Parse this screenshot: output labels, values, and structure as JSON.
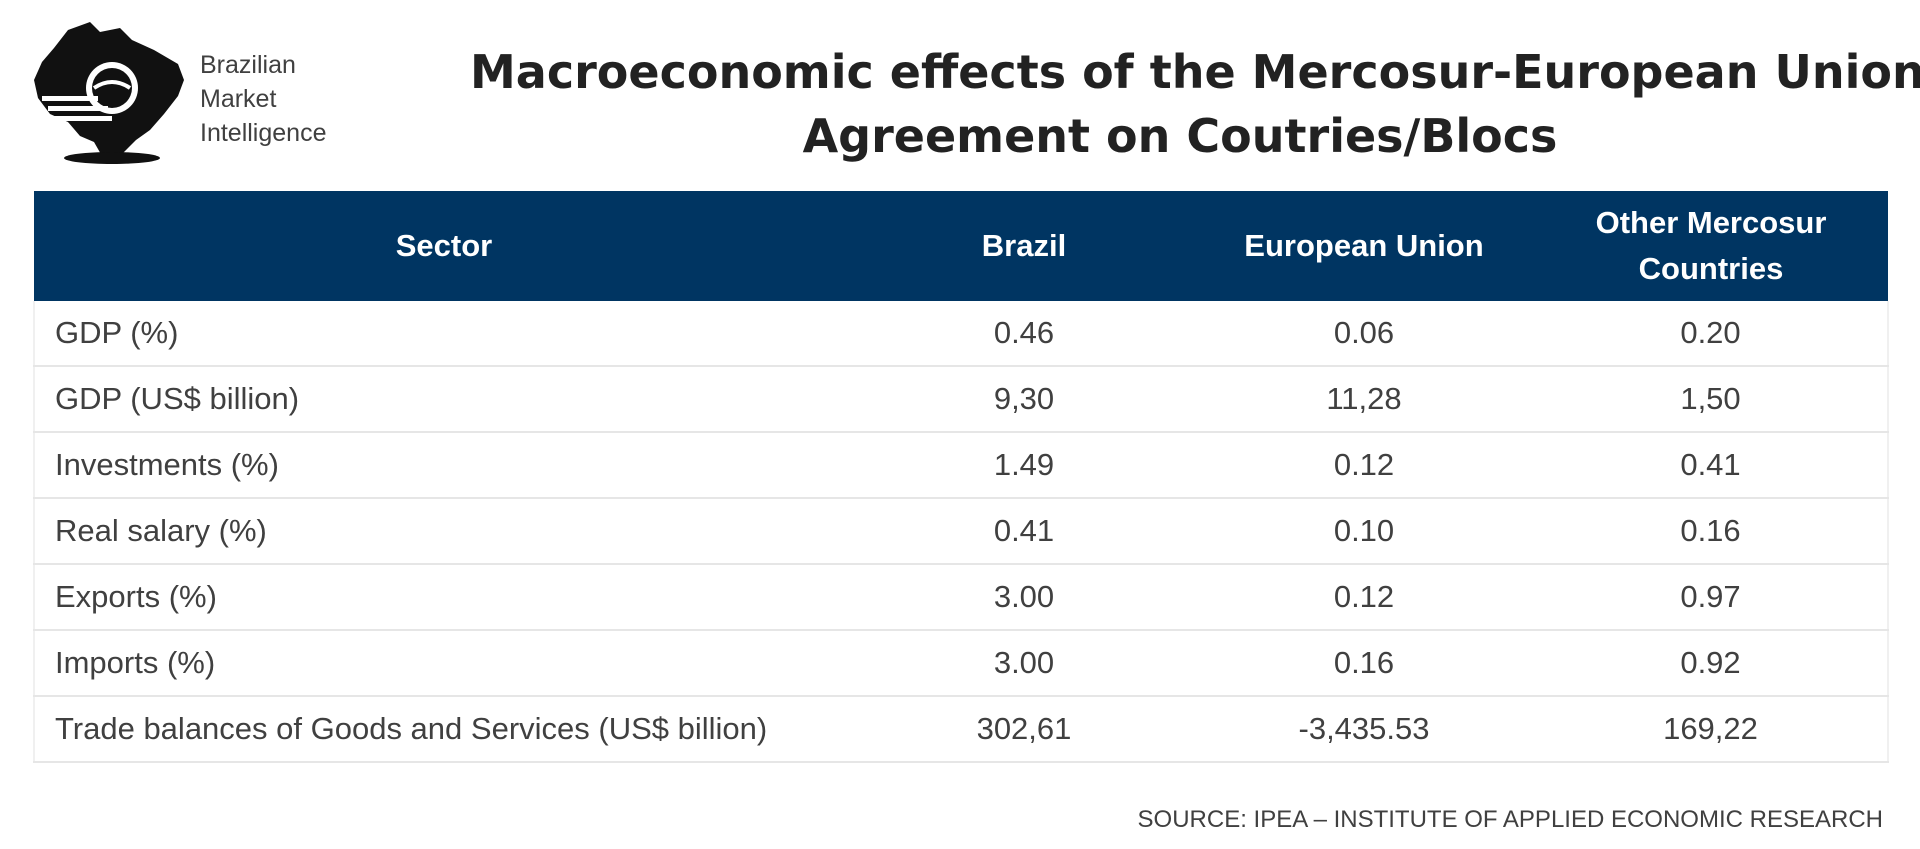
{
  "brand": {
    "line1": "Brazilian",
    "line2": "Market",
    "line3": "Intelligence"
  },
  "title": {
    "line1": "Macroeconomic effects of the Mercosur-European Union",
    "line2": "Agreement on Coutries/Blocs"
  },
  "table": {
    "headers": [
      "Sector",
      "Brazil",
      "European Union",
      "Other Mercosur Countries"
    ],
    "rows": [
      [
        "GDP (%)",
        "0.46",
        "0.06",
        "0.20"
      ],
      [
        "GDP (US$ billion)",
        "9,30",
        "11,28",
        "1,50"
      ],
      [
        "Investments (%)",
        "1.49",
        "0.12",
        "0.41"
      ],
      [
        "Real salary (%)",
        "0.41",
        "0.10",
        "0.16"
      ],
      [
        "Exports (%)",
        "3.00",
        "0.12",
        "0.97"
      ],
      [
        "Imports (%)",
        "3.00",
        "0.16",
        "0.92"
      ],
      [
        "Trade balances of Goods and Services (US$ billion)",
        "302,61",
        "-3,435.53",
        "169,22"
      ]
    ]
  },
  "source": "SOURCE: IPEA – INSTITUTE OF APPLIED ECONOMIC RESEARCH",
  "colors": {
    "header_bg": "#003562",
    "header_text": "#ffffff",
    "body_text": "#404040"
  },
  "icons": {
    "logo": "brazil-map-logo-icon"
  }
}
